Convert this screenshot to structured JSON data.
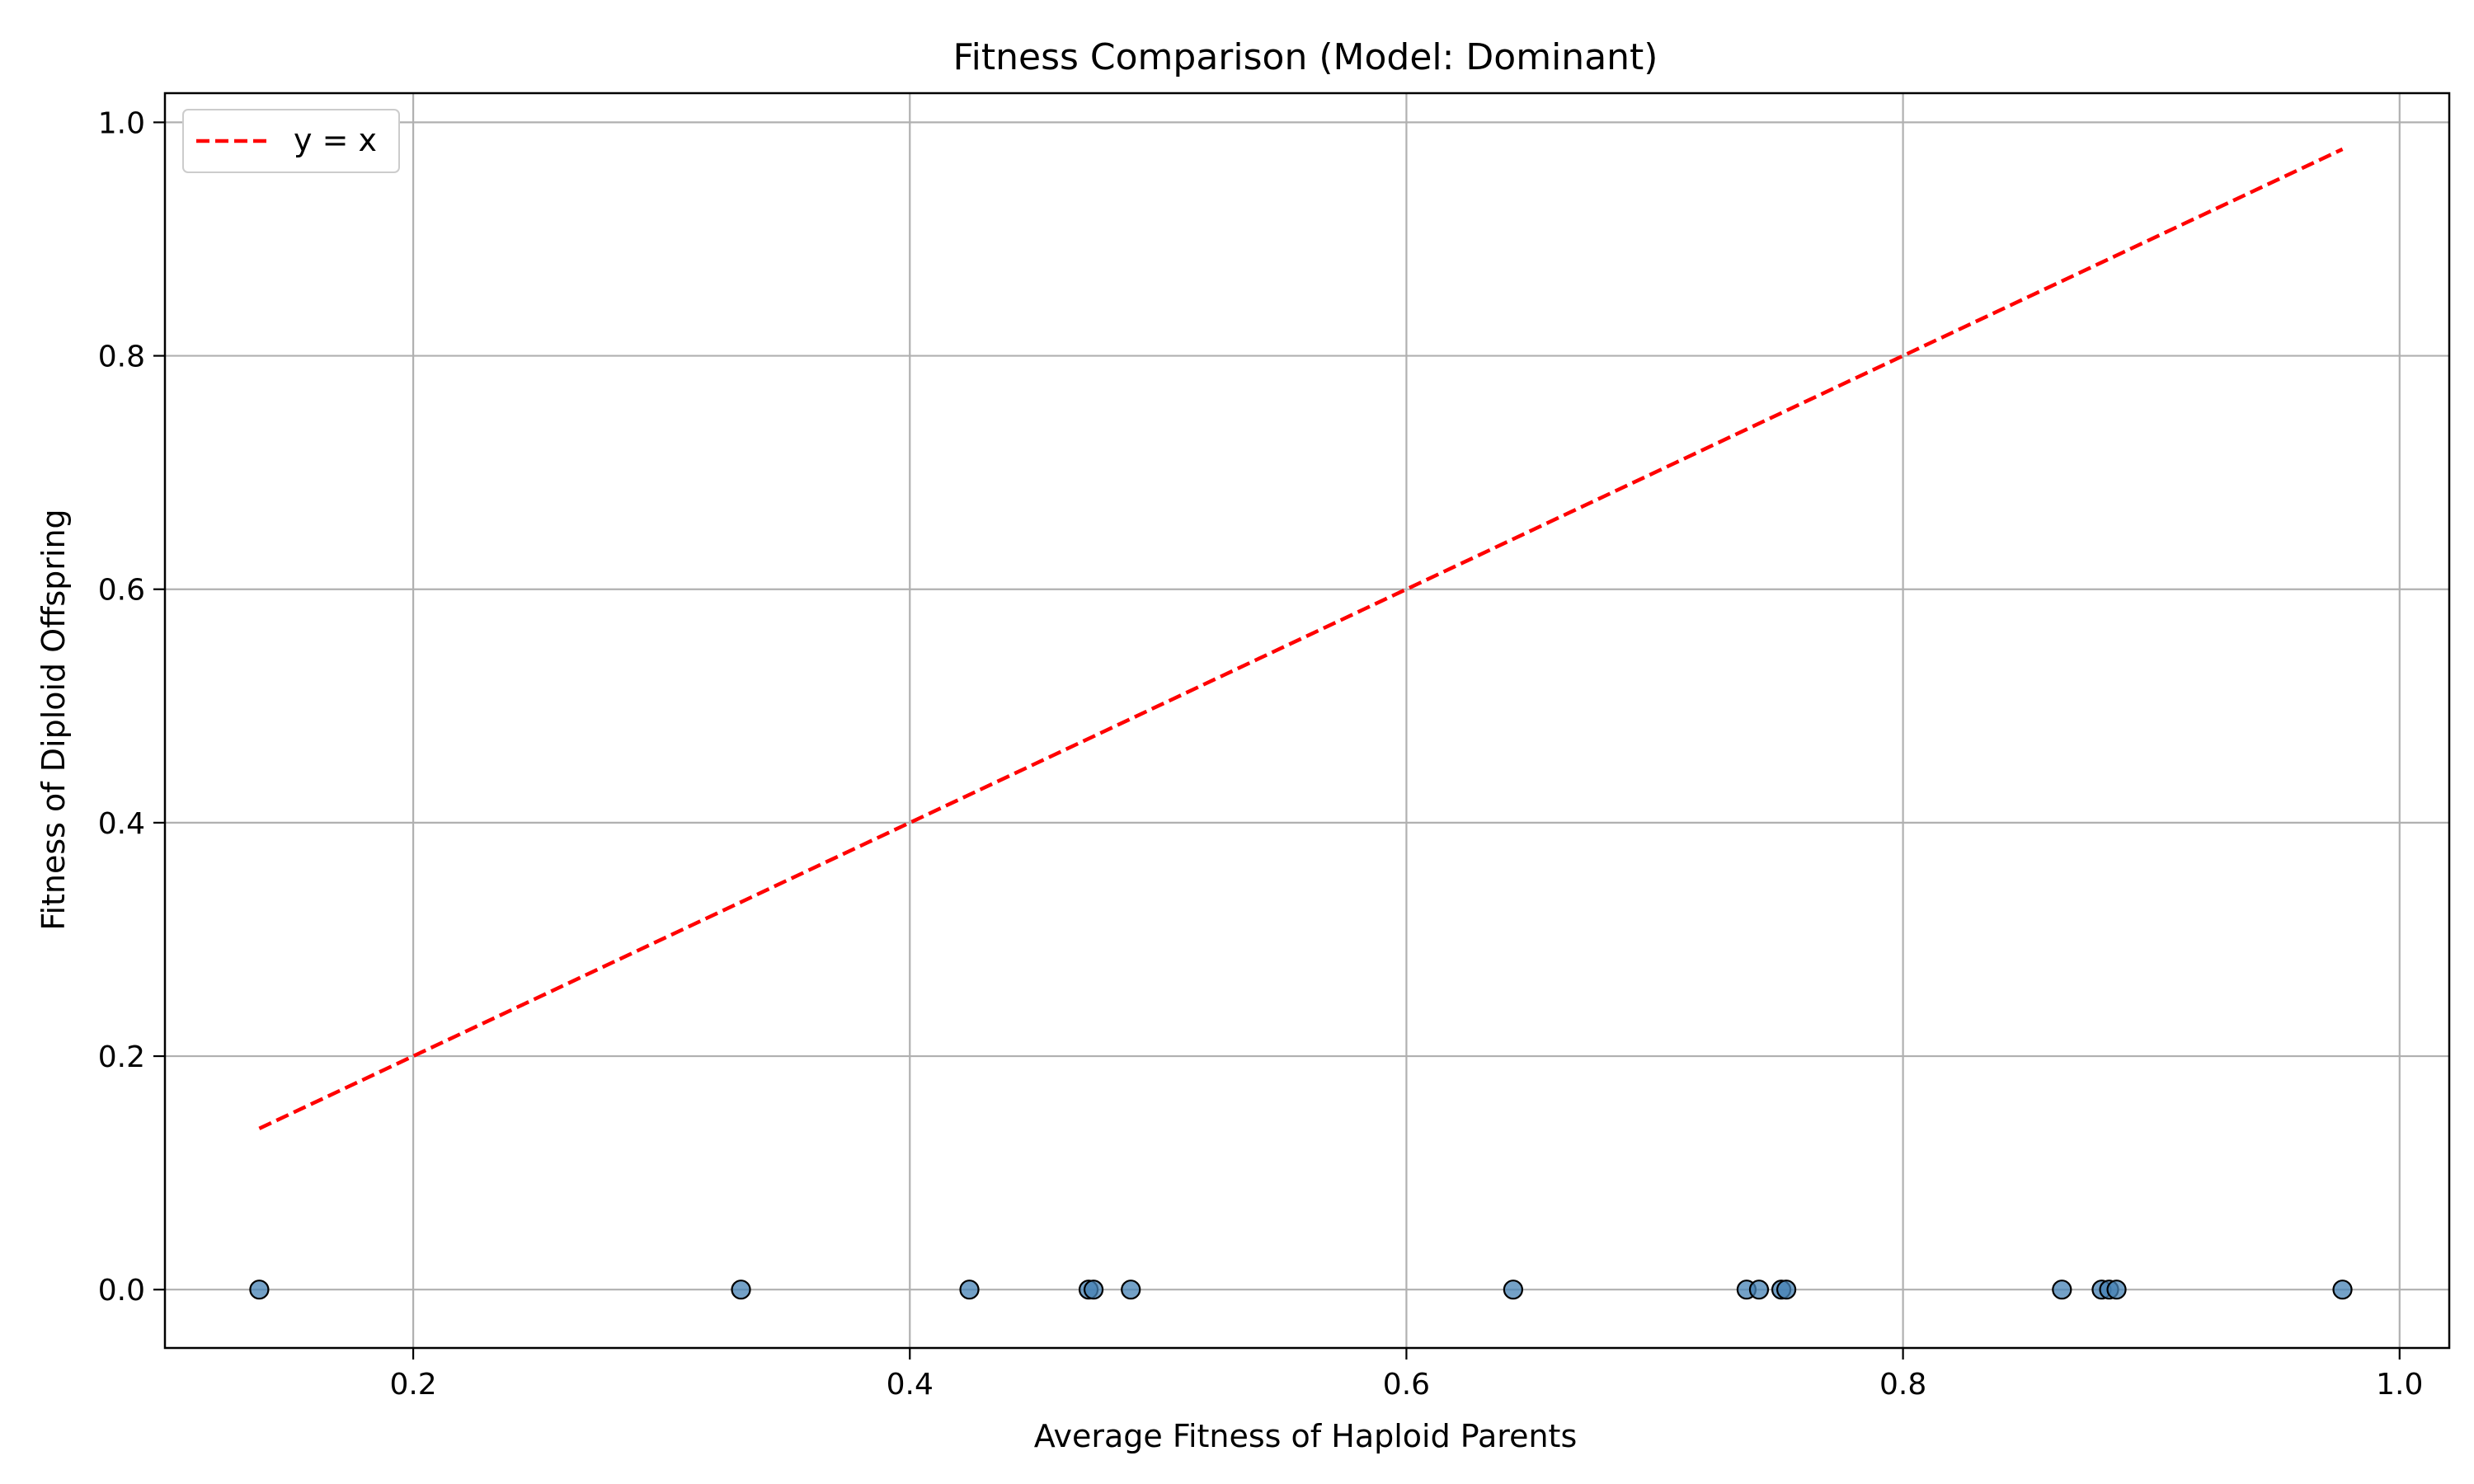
{
  "chart_data": {
    "type": "scatter",
    "title": "Fitness Comparison (Model: Dominant)",
    "xlabel": "Average Fitness of Haploid Parents",
    "ylabel": "Fitness of Diploid Offspring",
    "xlim": [
      0.1,
      1.02
    ],
    "ylim": [
      -0.05,
      1.025
    ],
    "xticks": [
      0.2,
      0.4,
      0.6,
      0.8,
      1.0
    ],
    "xtick_labels": [
      "0.2",
      "0.4",
      "0.6",
      "0.8",
      "1.0"
    ],
    "yticks": [
      0.0,
      0.2,
      0.4,
      0.6,
      0.8,
      1.0
    ],
    "ytick_labels": [
      "0.0",
      "0.2",
      "0.4",
      "0.6",
      "0.8",
      "1.0"
    ],
    "grid": true,
    "legend_position": "top-left",
    "series": [
      {
        "kind": "scatter",
        "color": "#4682b4",
        "points": [
          {
            "x": 0.138,
            "y": 0.0
          },
          {
            "x": 0.332,
            "y": 0.0
          },
          {
            "x": 0.424,
            "y": 0.0
          },
          {
            "x": 0.472,
            "y": 0.0
          },
          {
            "x": 0.474,
            "y": 0.0
          },
          {
            "x": 0.489,
            "y": 0.0
          },
          {
            "x": 0.643,
            "y": 0.0
          },
          {
            "x": 0.737,
            "y": 0.0
          },
          {
            "x": 0.742,
            "y": 0.0
          },
          {
            "x": 0.751,
            "y": 0.0
          },
          {
            "x": 0.753,
            "y": 0.0
          },
          {
            "x": 0.864,
            "y": 0.0
          },
          {
            "x": 0.88,
            "y": 0.0
          },
          {
            "x": 0.883,
            "y": 0.0
          },
          {
            "x": 0.886,
            "y": 0.0
          },
          {
            "x": 0.977,
            "y": 0.0
          }
        ]
      },
      {
        "kind": "line",
        "name": "y = x",
        "color": "#ff0000",
        "dashed": true,
        "x": [
          0.138,
          0.977
        ],
        "y": [
          0.138,
          0.977
        ]
      }
    ]
  }
}
